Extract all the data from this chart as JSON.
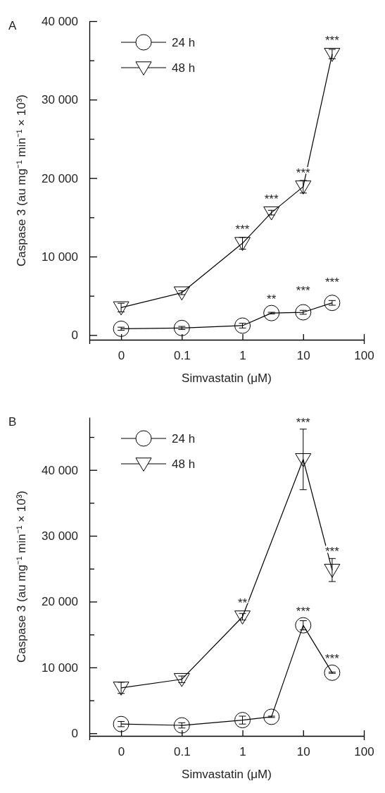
{
  "chart_data": [
    {
      "type": "line",
      "title": "A",
      "xlabel": "Simvastatin (μM)",
      "ylabel": "Caspase 3 (au mg⁻¹ min⁻¹ × 10³)",
      "log": "x",
      "xlim": [
        0.003,
        100
      ],
      "xticks": [
        {
          "value": 0.01,
          "label": "0"
        },
        0.1,
        1,
        10,
        100
      ],
      "ylim": [
        -600,
        40000
      ],
      "yticks": [
        {
          "value": 0,
          "label": "0"
        },
        {
          "value": 5000,
          "label": null
        },
        {
          "value": 10000,
          "label": "10 000"
        },
        {
          "value": 15000,
          "label": null
        },
        {
          "value": 20000,
          "label": "20 000"
        },
        {
          "value": 25000,
          "label": null
        },
        {
          "value": 30000,
          "label": "30 000"
        },
        {
          "value": 35000,
          "label": null
        },
        {
          "value": 40000,
          "label": "40 000"
        }
      ],
      "legend": "top left",
      "grid": false,
      "series": [
        {
          "name": "24 h",
          "color": "#000000",
          "marker": "circle",
          "x": [
            0.01,
            0.1,
            1,
            3,
            10,
            30
          ],
          "values": [
            800,
            900,
            1200,
            2800,
            2900,
            4100
          ],
          "errors": [
            200,
            200,
            300,
            100,
            250,
            300
          ]
        },
        {
          "name": "48 h",
          "color": "#000000",
          "marker": "triangle",
          "x": [
            0.01,
            0.1,
            1,
            3,
            10,
            30
          ],
          "values": [
            3500,
            5400,
            11700,
            15600,
            18900,
            35800
          ],
          "errors": [
            550,
            250,
            750,
            300,
            800,
            600
          ]
        }
      ],
      "annotations": [
        {
          "text": "**",
          "x": 3,
          "y": 2800
        },
        {
          "text": "***",
          "x": 10,
          "y": 2900
        },
        {
          "text": "***",
          "x": 30,
          "y": 4100
        },
        {
          "text": "***",
          "x": 1,
          "y": 11700
        },
        {
          "text": "***",
          "x": 3,
          "y": 15600
        },
        {
          "text": "***",
          "x": 10,
          "y": 18900
        },
        {
          "text": "***",
          "x": 30,
          "y": 35800
        }
      ]
    },
    {
      "type": "line",
      "title": "B",
      "xlabel": "Simvastatin (μM)",
      "ylabel": "Caspase 3 (au mg⁻¹ min⁻¹ × 10³)",
      "log": "x",
      "xlim": [
        0.003,
        100
      ],
      "xticks": [
        {
          "value": 0.01,
          "label": "0"
        },
        0.1,
        1,
        10,
        100
      ],
      "ylim": [
        -400,
        48000
      ],
      "yticks": [
        {
          "value": 0,
          "label": "0"
        },
        {
          "value": 5000,
          "label": null
        },
        {
          "value": 10000,
          "label": "10 000"
        },
        {
          "value": 15000,
          "label": null
        },
        {
          "value": 20000,
          "label": "20 000"
        },
        {
          "value": 25000,
          "label": null
        },
        {
          "value": 30000,
          "label": "30 000"
        },
        {
          "value": 35000,
          "label": null
        },
        {
          "value": 40000,
          "label": "40 000"
        },
        {
          "value": 45000,
          "label": null
        }
      ],
      "legend": "top left",
      "grid": false,
      "series": [
        {
          "name": "24 h",
          "color": "#000000",
          "marker": "circle",
          "x": [
            0.01,
            0.1,
            1,
            3,
            10,
            30
          ],
          "values": [
            1400,
            1200,
            2000,
            2500,
            16400,
            9200
          ],
          "errors": [
            400,
            400,
            600,
            100,
            700,
            100
          ]
        },
        {
          "name": "48 h",
          "color": "#000000",
          "marker": "triangle",
          "x": [
            0.01,
            0.1,
            1,
            10,
            30
          ],
          "values": [
            6900,
            8200,
            17700,
            41600,
            24800
          ],
          "errors": [
            850,
            500,
            500,
            4600,
            1750
          ]
        }
      ],
      "annotations": [
        {
          "text": "***",
          "x": 10,
          "y": 16400
        },
        {
          "text": "***",
          "x": 30,
          "y": 9200
        },
        {
          "text": "**",
          "x": 1,
          "y": 17700
        },
        {
          "text": "***",
          "x": 10,
          "y": 41600
        },
        {
          "text": "***",
          "x": 30,
          "y": 24800
        }
      ]
    }
  ]
}
